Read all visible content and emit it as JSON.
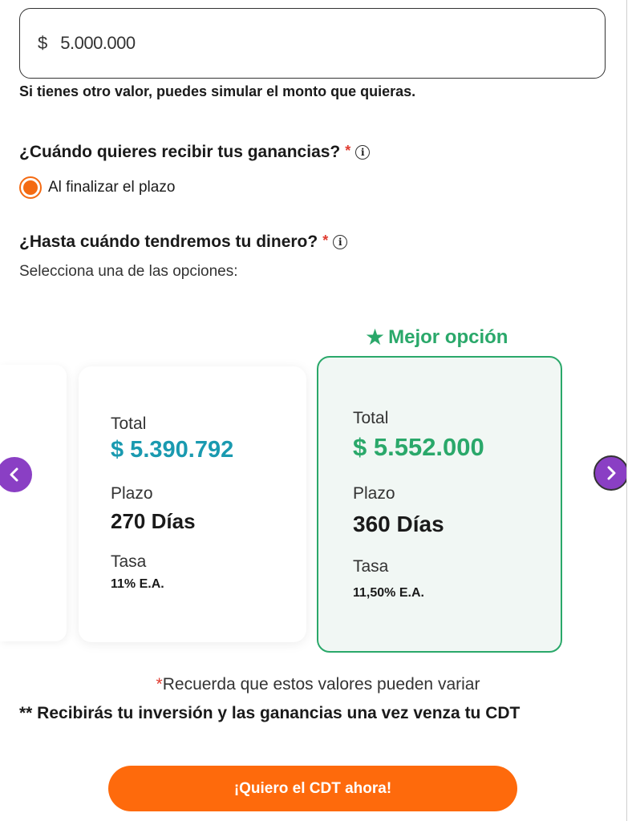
{
  "amount": {
    "currency": "$",
    "value": "5.000.000"
  },
  "amount_hint": "Si tienes otro valor, puedes simular el monto que quieras.",
  "earnings_question": {
    "label": "¿Cuándo quieres recibir tus ganancias?",
    "required_mark": "*",
    "selected_option": "Al finalizar el plazo"
  },
  "term_question": {
    "label": "¿Hasta cuándo tendremos tu dinero?",
    "required_mark": "*",
    "subtext": "Selecciona una de las opciones:"
  },
  "best_option_label": "Mejor opción",
  "options": [
    {
      "total_label": "Total",
      "total": "$ 5.390.792",
      "term_label": "Plazo",
      "term": "270 Días",
      "rate_label": "Tasa",
      "rate": "11% E.A."
    },
    {
      "total_label": "Total",
      "total": "$ 5.552.000",
      "term_label": "Plazo",
      "term": "360 Días",
      "rate_label": "Tasa",
      "rate": "11,50% E.A."
    }
  ],
  "notes": {
    "variation_mark": "*",
    "variation": "Recuerda que estos valores pueden variar",
    "maturity": "** Recibirás tu inversión y las ganancias una vez venza tu CDT"
  },
  "cta_label": "¡Quiero el CDT ahora!",
  "colors": {
    "accent_orange": "#fe6a0c",
    "best_green": "#2aa86a",
    "total_teal": "#1a9ab0",
    "nav_purple": "#8a3fc4"
  },
  "icons": {
    "info": "info-icon",
    "star": "star-icon",
    "prev": "chevron-left-icon",
    "next": "chevron-right-icon"
  }
}
